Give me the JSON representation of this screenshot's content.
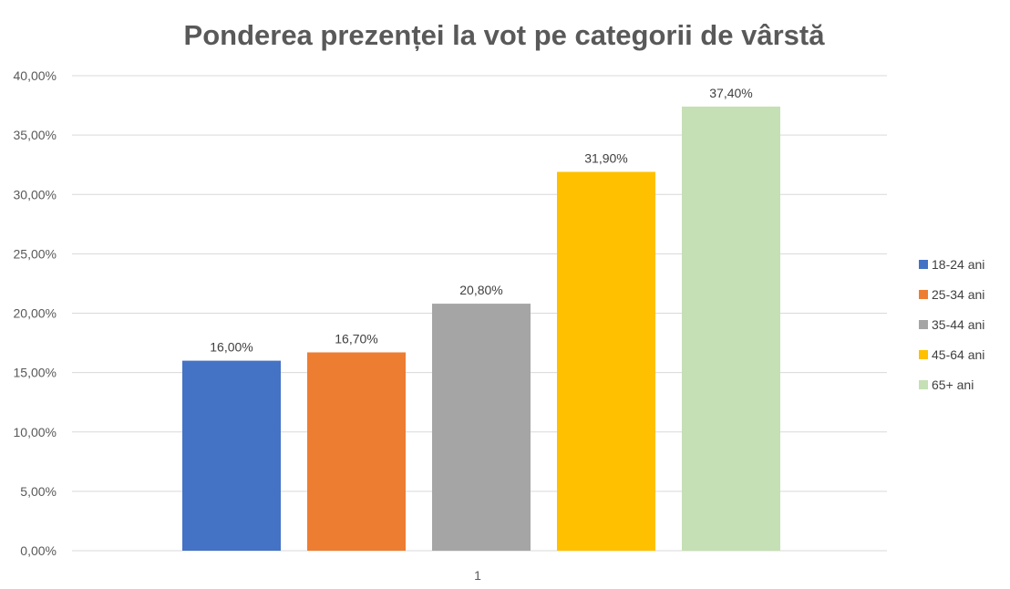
{
  "chart_data": {
    "type": "bar",
    "title": "Ponderea prezenței la vot pe categorii de vârstă",
    "categories": [
      "1"
    ],
    "series": [
      {
        "name": "18-24 ani",
        "values": [
          16.0
        ],
        "label": "16,00%",
        "color": "#4472C4"
      },
      {
        "name": "25-34 ani",
        "values": [
          16.7
        ],
        "label": "16,70%",
        "color": "#ED7D31"
      },
      {
        "name": "35-44 ani",
        "values": [
          20.8
        ],
        "label": "20,80%",
        "color": "#A5A5A5"
      },
      {
        "name": "45-64 ani",
        "values": [
          31.9
        ],
        "label": "31,90%",
        "color": "#FFC000"
      },
      {
        "name": "65+ ani",
        "values": [
          37.4
        ],
        "label": "37,40%",
        "color": "#C5E0B4"
      }
    ],
    "ylim": [
      0,
      40
    ],
    "yticks": [
      0,
      5,
      10,
      15,
      20,
      25,
      30,
      35,
      40
    ],
    "ytick_labels": [
      "0,00%",
      "5,00%",
      "10,00%",
      "15,00%",
      "20,00%",
      "25,00%",
      "30,00%",
      "35,00%",
      "40,00%"
    ],
    "xlabel": "",
    "ylabel": "",
    "grid": true,
    "legend": "right"
  }
}
